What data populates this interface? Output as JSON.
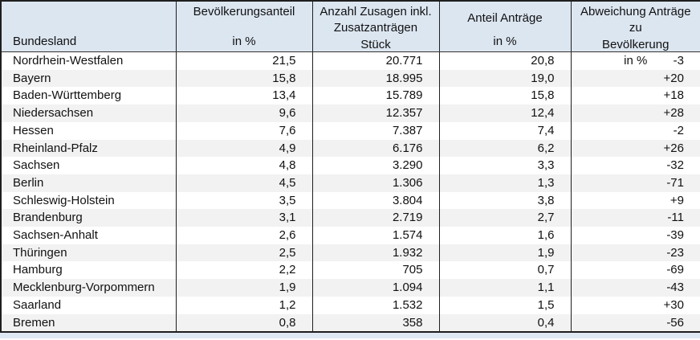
{
  "table": {
    "columns": [
      {
        "line1": "Bundesland",
        "line2": "",
        "unit": ""
      },
      {
        "line1": "Bevölkerungsanteil",
        "line2": "",
        "unit": "in %"
      },
      {
        "line1": "Anzahl Zusagen inkl.",
        "line2": "Zusatzanträgen",
        "unit": "Stück"
      },
      {
        "line1": "Anteil Anträge",
        "line2": "",
        "unit": "in %"
      },
      {
        "line1": "Abweichung Anträge zu",
        "line2": "Bevölkerung",
        "unit": "in %"
      }
    ],
    "rows": [
      [
        "Nordrhein-Westfalen",
        "21,5",
        "20.771",
        "20,8",
        "-3"
      ],
      [
        "Bayern",
        "15,8",
        "18.995",
        "19,0",
        "+20"
      ],
      [
        "Baden-Württemberg",
        "13,4",
        "15.789",
        "15,8",
        "+18"
      ],
      [
        "Niedersachsen",
        "9,6",
        "12.357",
        "12,4",
        "+28"
      ],
      [
        "Hessen",
        "7,6",
        "7.387",
        "7,4",
        "-2"
      ],
      [
        "Rheinland-Pfalz",
        "4,9",
        "6.176",
        "6,2",
        "+26"
      ],
      [
        "Sachsen",
        "4,8",
        "3.290",
        "3,3",
        "-32"
      ],
      [
        "Berlin",
        "4,5",
        "1.306",
        "1,3",
        "-71"
      ],
      [
        "Schleswig-Holstein",
        "3,5",
        "3.804",
        "3,8",
        "+9"
      ],
      [
        "Brandenburg",
        "3,1",
        "2.719",
        "2,7",
        "-11"
      ],
      [
        "Sachsen-Anhalt",
        "2,6",
        "1.574",
        "1,6",
        "-39"
      ],
      [
        "Thüringen",
        "2,5",
        "1.932",
        "1,9",
        "-23"
      ],
      [
        "Hamburg",
        "2,2",
        "705",
        "0,7",
        "-69"
      ],
      [
        "Mecklenburg-Vorpommern",
        "1,9",
        "1.094",
        "1,1",
        "-43"
      ],
      [
        "Saarland",
        "1,2",
        "1.532",
        "1,5",
        "+30"
      ],
      [
        "Bremen",
        "0,8",
        "358",
        "0,4",
        "-56"
      ]
    ]
  },
  "colors": {
    "header_background": "#dce6f1",
    "row_stripe": "#f2f2f2",
    "border": "#1f1f1f",
    "bottom_strip": "#dfe9f3",
    "text": "#111111"
  }
}
